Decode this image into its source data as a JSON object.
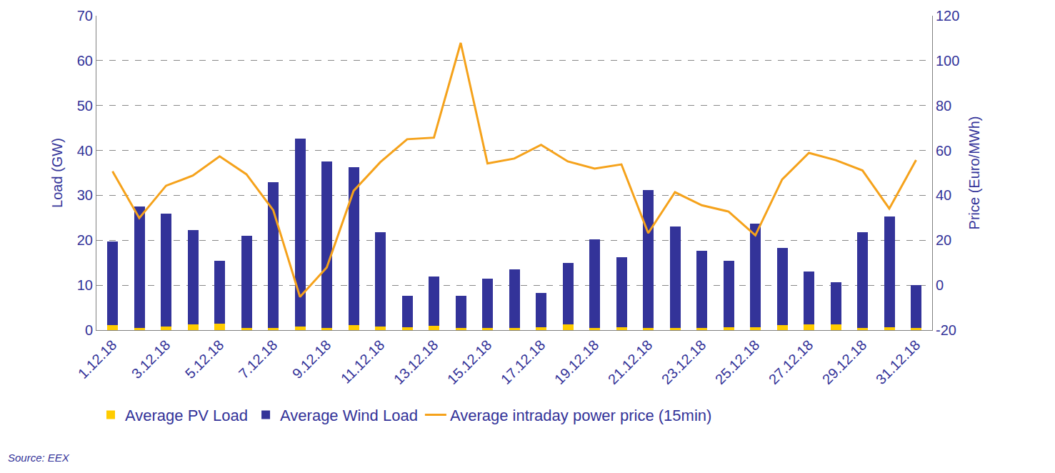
{
  "chart_data": {
    "type": "bar",
    "categories": [
      "1.12.18",
      null,
      "3.12.18",
      null,
      "5.12.18",
      null,
      "7.12.18",
      null,
      "9.12.18",
      null,
      "11.12.18",
      null,
      "13.12.18",
      null,
      "15.12.18",
      null,
      "17.12.18",
      null,
      "19.12.18",
      null,
      "21.12.18",
      null,
      "23.12.18",
      null,
      "25.12.18",
      null,
      "27.12.18",
      null,
      "29.12.18",
      null,
      "31.12.18"
    ],
    "series": [
      {
        "name": "Average PV Load",
        "type": "bar",
        "color": "#ffcc00",
        "values": [
          1.1,
          0.4,
          0.8,
          1.2,
          1.4,
          0.5,
          0.5,
          0.8,
          0.5,
          1.1,
          0.8,
          0.7,
          1.0,
          0.5,
          0.5,
          0.4,
          0.6,
          1.2,
          0.5,
          0.7,
          0.4,
          0.5,
          0.5,
          0.7,
          0.7,
          1.1,
          1.2,
          1.3,
          0.5,
          0.6,
          0.5
        ]
      },
      {
        "name": "Average Wind Load",
        "type": "bar",
        "color": "#333399",
        "values": [
          18.6,
          27.1,
          25.2,
          21.1,
          14.1,
          20.5,
          32.5,
          41.9,
          37.0,
          35.2,
          21.0,
          7.0,
          10.9,
          7.2,
          11.0,
          13.1,
          7.7,
          13.8,
          19.7,
          15.5,
          30.8,
          22.5,
          17.1,
          14.8,
          23.0,
          17.2,
          11.9,
          9.4,
          21.3,
          24.7,
          9.5
        ]
      },
      {
        "name": "Average intraday power price (15min)",
        "type": "line",
        "axis": "y2",
        "color": "#f5a21b",
        "line_style": "solid",
        "values": [
          50.7,
          29.9,
          44.3,
          48.8,
          57.4,
          49.4,
          33.4,
          -5.2,
          7.9,
          42.0,
          54.8,
          65.0,
          65.7,
          107.9,
          54.2,
          56.4,
          62.5,
          55.1,
          51.9,
          53.8,
          23.2,
          41.4,
          35.6,
          32.8,
          22.2,
          47.1,
          58.9,
          55.7,
          51.1,
          34.1,
          55.7
        ]
      }
    ],
    "y_label": "Load (GW)",
    "y2_label": "Price (Euro/MWh)",
    "ylim": [
      0,
      70
    ],
    "yticks": [
      0,
      10,
      20,
      30,
      40,
      50,
      60,
      70
    ],
    "y2lim": [
      -20,
      120
    ],
    "y2ticks": [
      -20,
      0,
      20,
      40,
      60,
      80,
      100,
      120
    ],
    "stacked": true,
    "grid": true,
    "legend": "bottom",
    "annotations": [
      "Source: EEX"
    ]
  }
}
